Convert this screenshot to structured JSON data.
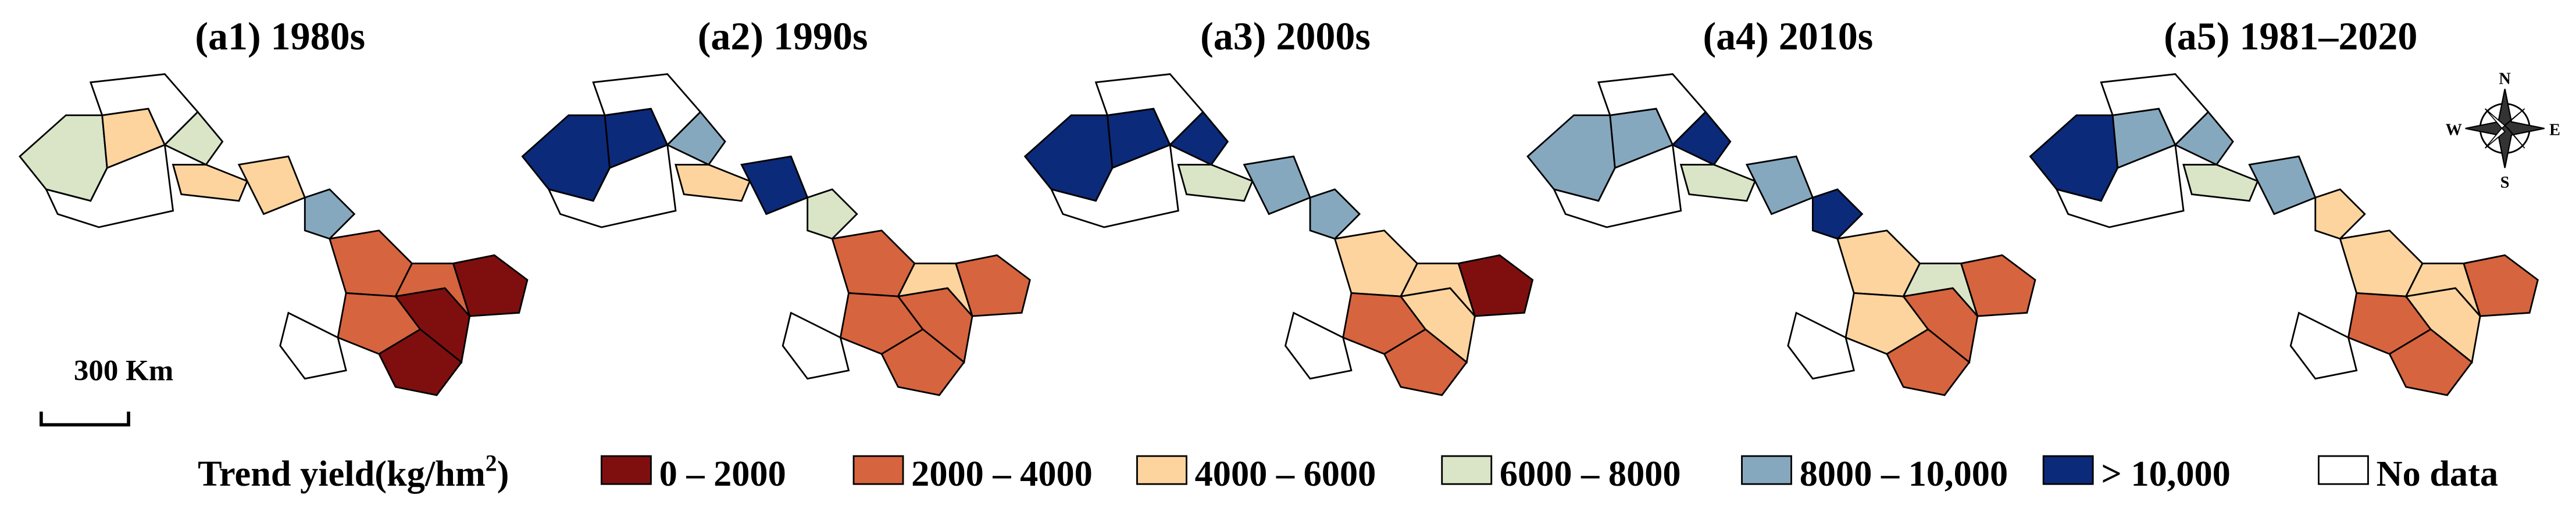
{
  "panels": [
    {
      "title": "(a1) 1980s"
    },
    {
      "title": "(a2) 1990s"
    },
    {
      "title": "(a3) 2000s"
    },
    {
      "title": "(a4) 2010s"
    },
    {
      "title": "(a5) 1981–2020"
    }
  ],
  "scale_bar": {
    "label": "300 Km"
  },
  "compass": {
    "north": "N",
    "south": "S",
    "east": "E",
    "west": "W"
  },
  "legend": {
    "title": "Trend yield(kg/hm",
    "title_sup": "2",
    "title_end": ")",
    "items": [
      {
        "label": "0 – 2000",
        "color": "#7f0f0f"
      },
      {
        "label": "2000 – 4000",
        "color": "#d6643e"
      },
      {
        "label": "4000 – 6000",
        "color": "#fdd49e"
      },
      {
        "label": "6000 – 8000",
        "color": "#d9e5c6"
      },
      {
        "label": "8000 – 10,000",
        "color": "#86a8be"
      },
      {
        "label": "> 10,000",
        "color": "#0c2a7a"
      },
      {
        "label": "No data",
        "color": "#ffffff"
      }
    ]
  }
}
